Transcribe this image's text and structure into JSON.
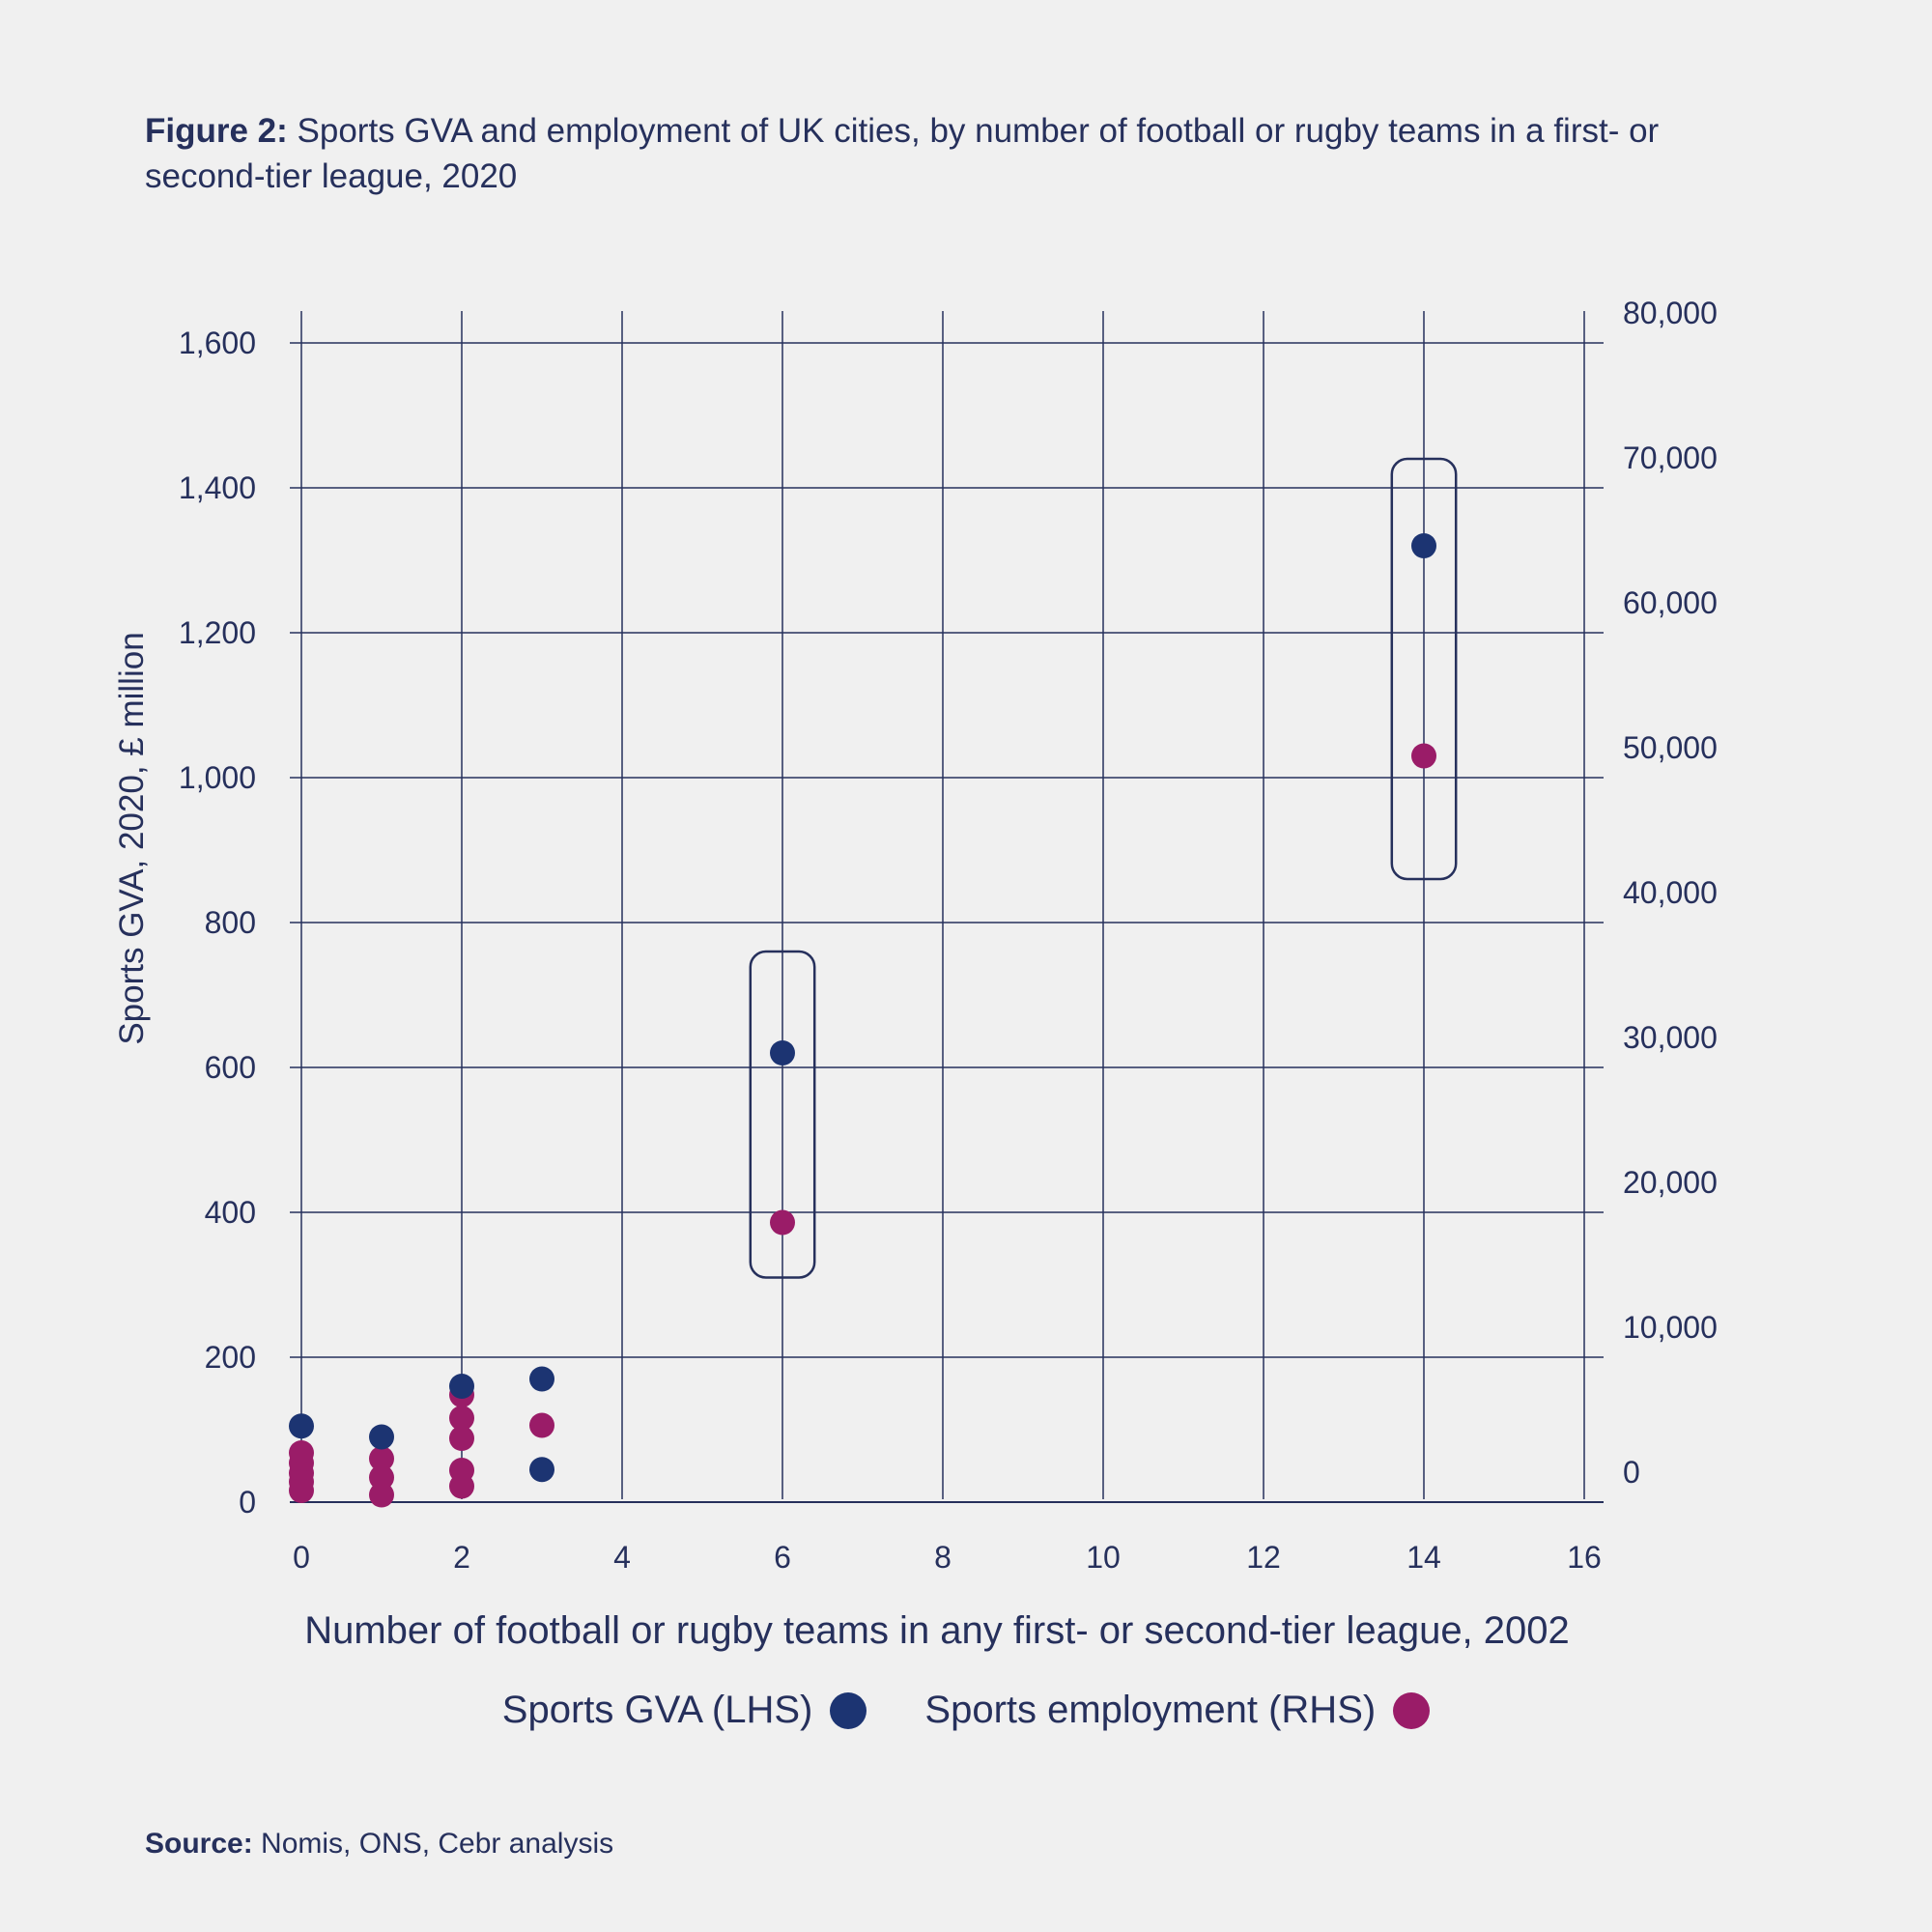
{
  "figure": {
    "title_prefix": "Figure 2:",
    "title_text": " Sports GVA and employment of UK cities, by number of football or rugby teams in a first- or second-tier league, 2020",
    "source_prefix": "Source:",
    "source_text": " Nomis, ONS, Cebr analysis"
  },
  "colors": {
    "gva": "#1c3472",
    "employment": "#9a1c68",
    "grid": "#26305c",
    "background": "#f0f0f0"
  },
  "chart_data": {
    "type": "scatter",
    "title": "Sports GVA and employment of UK cities, by number of football or rugby teams in a first- or second-tier league, 2020",
    "xlabel": "Number of football or rugby teams in any first- or second-tier league, 2002",
    "ylabel": "Sports GVA, 2020, £ million",
    "y2label": "",
    "xlim": [
      0,
      16
    ],
    "ylim": [
      0,
      1600
    ],
    "y2lim": [
      0,
      80000
    ],
    "xticks": [
      "0",
      "2",
      "4",
      "6",
      "8",
      "10",
      "12",
      "14",
      "16"
    ],
    "yticks": [
      "0",
      "200",
      "400",
      "600",
      "800",
      "1,000",
      "1,200",
      "1,400",
      "1,600"
    ],
    "y2ticks": [
      "0",
      "10,000",
      "20,000",
      "30,000",
      "40,000",
      "50,000",
      "60,000",
      "70,000",
      "80,000"
    ],
    "grid": true,
    "legend_position": "bottom-center",
    "series": [
      {
        "name": "Sports GVA (LHS)",
        "axis": "left",
        "color": "#1c3472",
        "points": [
          {
            "x": 0,
            "y": 105
          },
          {
            "x": 1,
            "y": 90
          },
          {
            "x": 2,
            "y": 160
          },
          {
            "x": 3,
            "y": 170
          },
          {
            "x": 3,
            "y": 45
          },
          {
            "x": 6,
            "y": 620
          },
          {
            "x": 14,
            "y": 1320
          }
        ]
      },
      {
        "name": "Sports employment (RHS)",
        "axis": "right",
        "color": "#9a1c68",
        "points": [
          {
            "x": 0,
            "y": 3400
          },
          {
            "x": 0,
            "y": 2700
          },
          {
            "x": 0,
            "y": 2000
          },
          {
            "x": 0,
            "y": 1400
          },
          {
            "x": 0,
            "y": 800
          },
          {
            "x": 1,
            "y": 3000
          },
          {
            "x": 1,
            "y": 1700
          },
          {
            "x": 1,
            "y": 500
          },
          {
            "x": 2,
            "y": 7400
          },
          {
            "x": 2,
            "y": 5800
          },
          {
            "x": 2,
            "y": 4400
          },
          {
            "x": 2,
            "y": 2200
          },
          {
            "x": 2,
            "y": 1100
          },
          {
            "x": 3,
            "y": 5300
          },
          {
            "x": 6,
            "y": 19300
          },
          {
            "x": 14,
            "y": 51500
          }
        ]
      }
    ],
    "annotations": [
      {
        "shape": "rounded-rect",
        "x_range": [
          5.6,
          6.4
        ],
        "y_range": [
          310,
          760
        ]
      },
      {
        "shape": "rounded-rect",
        "x_range": [
          13.6,
          14.4
        ],
        "y_range": [
          860,
          1440
        ]
      }
    ]
  }
}
